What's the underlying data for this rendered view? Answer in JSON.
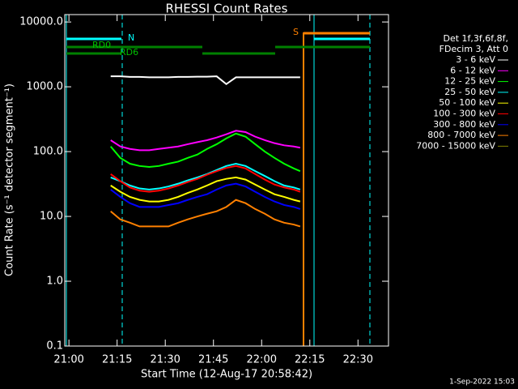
{
  "chart_data": {
    "type": "line",
    "title": "RHESSI Count Rates",
    "x_label": "Start Time (12-Aug-17 20:58:42)",
    "y_label": "Count Rate (s⁻¹ detector segment⁻¹)",
    "legend_header": [
      "Det 1f,3f,6f,8f,",
      "FDecim 3, Att 0"
    ],
    "annotations": [
      "RD0",
      "RD6",
      "N",
      "S"
    ],
    "footer": "1-Sep-2022 15:03",
    "log_y": true,
    "xlim": [
      -1.3,
      99.5
    ],
    "ylim": [
      0.1,
      13000
    ],
    "xticks": [
      {
        "value": 0,
        "label": "21:00"
      },
      {
        "value": 15,
        "label": "21:15"
      },
      {
        "value": 30,
        "label": "21:30"
      },
      {
        "value": 45,
        "label": "21:45"
      },
      {
        "value": 60,
        "label": "22:00"
      },
      {
        "value": 75,
        "label": "22:15"
      },
      {
        "value": 90,
        "label": "22:30"
      }
    ],
    "yticks": [
      {
        "value": 10000,
        "label": "10000.0"
      },
      {
        "value": 1000,
        "label": "1000.0"
      },
      {
        "value": 100,
        "label": "100.0"
      },
      {
        "value": 10,
        "label": "10.0"
      },
      {
        "value": 1,
        "label": "1.0"
      },
      {
        "value": 0.1,
        "label": "0.1"
      }
    ],
    "x": [
      13,
      16,
      19,
      22,
      25,
      28,
      31,
      34,
      37,
      40,
      43,
      46,
      49,
      52,
      55,
      58,
      61,
      64,
      67,
      70,
      72
    ],
    "series": [
      {
        "name": "3 - 6 keV",
        "color": "#000000",
        "values": [
          1450,
          1450,
          1420,
          1420,
          1400,
          1400,
          1400,
          1420,
          1420,
          1430,
          1430,
          1450,
          1100,
          1400,
          1400,
          1400,
          1400,
          1400,
          1400,
          1400,
          1400
        ]
      },
      {
        "name": "6 - 12 keV",
        "color": "#ff00ff",
        "values": [
          150,
          120,
          110,
          105,
          105,
          110,
          115,
          120,
          130,
          140,
          150,
          165,
          185,
          210,
          200,
          170,
          150,
          135,
          125,
          120,
          115
        ]
      },
      {
        "name": "12 - 25 keV",
        "color": "#00ff00",
        "values": [
          120,
          80,
          65,
          60,
          58,
          60,
          65,
          70,
          80,
          90,
          110,
          130,
          160,
          190,
          170,
          130,
          100,
          80,
          65,
          55,
          50
        ]
      },
      {
        "name": "25 - 50 keV",
        "color": "#00ffff",
        "values": [
          40,
          35,
          30,
          27,
          26,
          27,
          29,
          32,
          36,
          40,
          45,
          52,
          60,
          65,
          60,
          50,
          42,
          35,
          30,
          28,
          26
        ]
      },
      {
        "name": "50 - 100 keV",
        "color": "#ffff00",
        "values": [
          30,
          24,
          20,
          18,
          17,
          17,
          18,
          20,
          23,
          26,
          30,
          35,
          38,
          40,
          37,
          31,
          26,
          22,
          20,
          18,
          17
        ]
      },
      {
        "name": "100 - 300 keV",
        "color": "#ff0000",
        "values": [
          45,
          35,
          28,
          25,
          24,
          25,
          27,
          30,
          34,
          38,
          44,
          50,
          56,
          60,
          55,
          45,
          37,
          31,
          28,
          26,
          24
        ]
      },
      {
        "name": "300 - 800 keV",
        "color": "#0000ff",
        "values": [
          26,
          20,
          16,
          14,
          14,
          14,
          15,
          16,
          18,
          20,
          22,
          26,
          30,
          32,
          29,
          24,
          20,
          17,
          15,
          14,
          13
        ]
      },
      {
        "name": "800 - 7000 keV",
        "color": "#ff8000",
        "values": [
          12,
          9,
          8,
          7,
          7,
          7,
          7,
          8,
          9,
          10,
          11,
          12,
          14,
          18,
          16,
          13,
          11,
          9,
          8,
          7.5,
          7
        ]
      },
      {
        "name": "7000 - 15000 keV",
        "color": "#808000",
        "values": [
          null,
          null,
          null,
          null,
          null,
          null,
          null,
          null,
          null,
          null,
          null,
          null,
          null,
          null,
          null,
          null,
          null,
          null,
          null,
          null,
          null
        ]
      }
    ]
  }
}
